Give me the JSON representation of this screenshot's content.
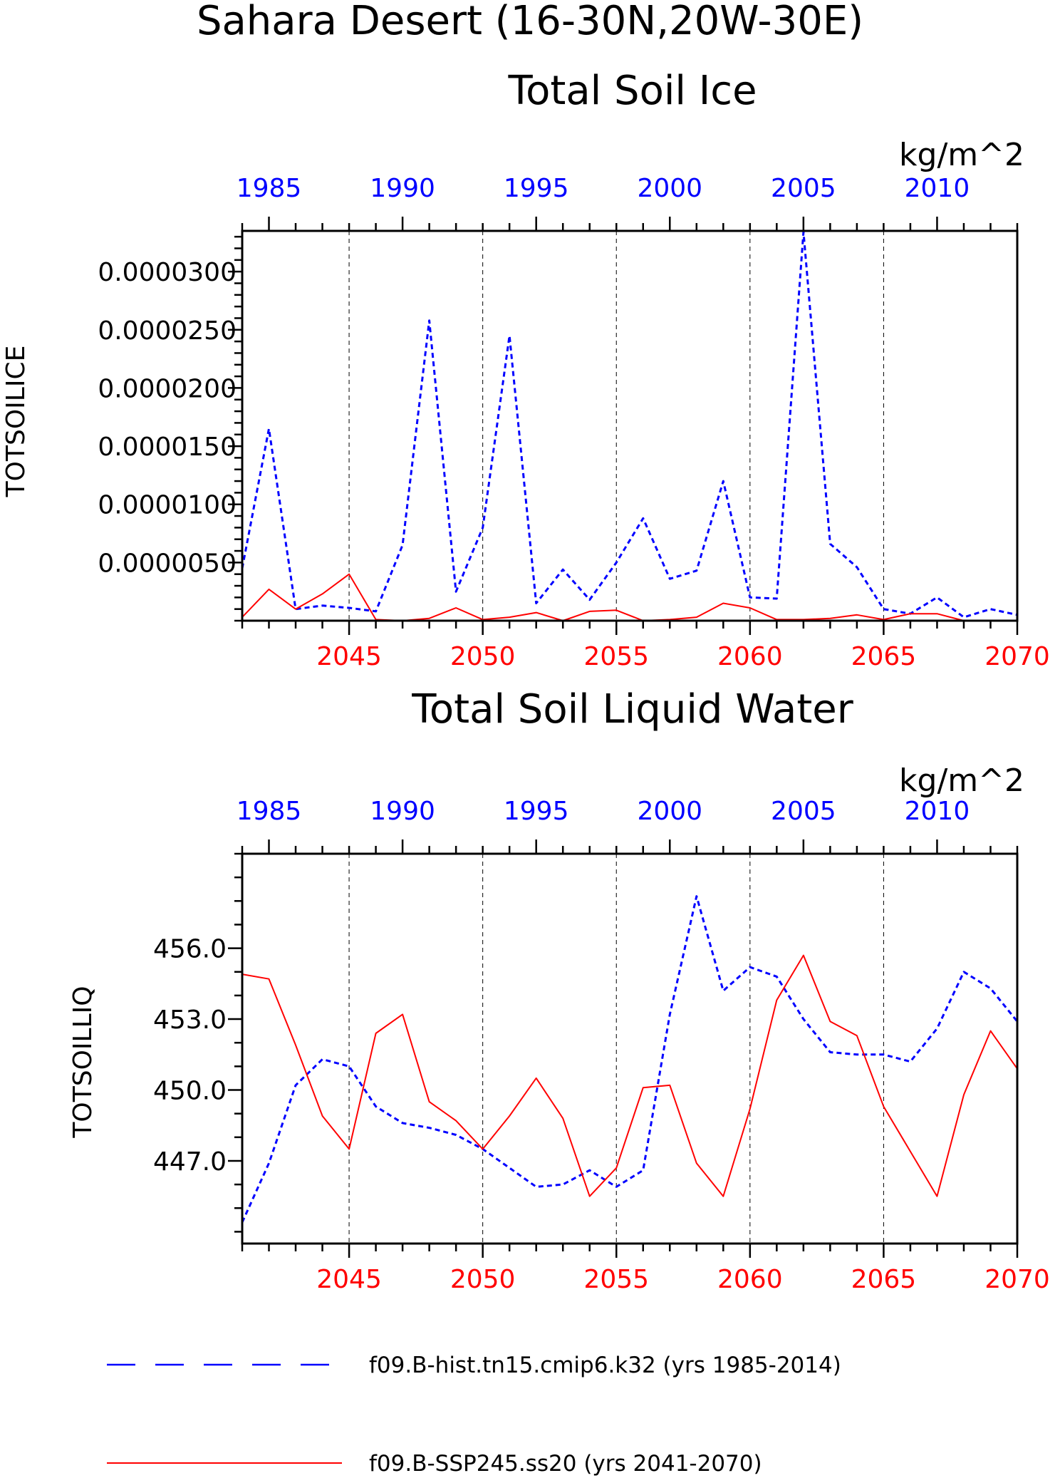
{
  "figure_title": "Sahara Desert (16-30N,20W-30E)",
  "legend": {
    "hist": "f09.B-hist.tn15.cmip6.k32 (yrs 1985-2014)",
    "ssp": "f09.B-SSP245.ss20 (yrs 2041-2070)"
  },
  "colors": {
    "hist": "#0000ff",
    "ssp": "#ff0000",
    "axis": "#000000",
    "grid": "#000000"
  },
  "chart_data": [
    {
      "type": "line",
      "title": "Total Soil Ice",
      "units": "kg/m^2",
      "ylabel": "TOTSOILICE",
      "ylim": [
        0,
        3.35e-05
      ],
      "yticks": [
        5e-06,
        1e-05,
        1.5e-05,
        2e-05,
        2.5e-05,
        3e-05
      ],
      "ytick_labels": [
        "0.0000050",
        "0.0000100",
        "0.0000150",
        "0.0000200",
        "0.0000250",
        "0.0000300"
      ],
      "yminor_step": 1e-06,
      "top_axis": {
        "xlim": [
          1984,
          2013
        ],
        "ticks": [
          1985,
          1990,
          1995,
          2000,
          2005,
          2010
        ],
        "labels": [
          "1985",
          "1990",
          "1995",
          "2000",
          "2005",
          "2010"
        ]
      },
      "bottom_axis": {
        "xlim": [
          2041,
          2070
        ],
        "ticks": [
          2045,
          2050,
          2055,
          2060,
          2065,
          2070
        ],
        "labels": [
          "2045",
          "2050",
          "2055",
          "2060",
          "2065",
          "2070"
        ]
      },
      "series": [
        {
          "id": "hist",
          "x": [
            1984,
            1985,
            1986,
            1987,
            1988,
            1989,
            1990,
            1991,
            1992,
            1993,
            1994,
            1995,
            1996,
            1997,
            1998,
            1999,
            2000,
            2001,
            2002,
            2003,
            2004,
            2005,
            2006,
            2007,
            2008,
            2009,
            2010,
            2011,
            2012,
            2013
          ],
          "values": [
            4.5e-06,
            1.65e-05,
            1e-06,
            1.3e-06,
            1.1e-06,
            8e-07,
            6.5e-06,
            2.58e-05,
            2.5e-06,
            8e-06,
            2.45e-05,
            1.5e-06,
            4.4e-06,
            1.8e-06,
            5e-06,
            8.8e-06,
            3.6e-06,
            4.3e-06,
            1.2e-05,
            2e-06,
            1.9e-06,
            3.34e-05,
            6.6e-06,
            4.6e-06,
            1e-06,
            6e-07,
            2e-06,
            3e-07,
            1e-06,
            5e-07
          ]
        },
        {
          "id": "ssp",
          "x": [
            2041,
            2042,
            2043,
            2044,
            2045,
            2046,
            2047,
            2048,
            2049,
            2050,
            2051,
            2052,
            2053,
            2054,
            2055,
            2056,
            2057,
            2058,
            2059,
            2060,
            2061,
            2062,
            2063,
            2064,
            2065,
            2066,
            2067,
            2068,
            2069,
            2070
          ],
          "values": [
            3e-07,
            2.7e-06,
            1e-06,
            2.3e-06,
            4e-06,
            1e-07,
            0.0,
            2e-07,
            1.1e-06,
            1e-07,
            3e-07,
            7e-07,
            0.0,
            8e-07,
            9e-07,
            0.0,
            1e-07,
            3e-07,
            1.5e-06,
            1.1e-06,
            1e-07,
            1e-07,
            2e-07,
            5e-07,
            1e-07,
            6e-07,
            6e-07,
            0.0,
            0.0,
            0.0
          ]
        }
      ]
    },
    {
      "type": "line",
      "title": "Total Soil Liquid Water",
      "units": "kg/m^2",
      "ylabel": "TOTSOILLIQ",
      "ylim": [
        443.5,
        460.0
      ],
      "yticks": [
        447,
        450,
        453,
        456
      ],
      "ytick_labels": [
        "447.0",
        "450.0",
        "453.0",
        "456.0"
      ],
      "yminor_step": 1,
      "top_axis": {
        "xlim": [
          1984,
          2013
        ],
        "ticks": [
          1985,
          1990,
          1995,
          2000,
          2005,
          2010
        ],
        "labels": [
          "1985",
          "1990",
          "1995",
          "2000",
          "2005",
          "2010"
        ]
      },
      "bottom_axis": {
        "xlim": [
          2041,
          2070
        ],
        "ticks": [
          2045,
          2050,
          2055,
          2060,
          2065,
          2070
        ],
        "labels": [
          "2045",
          "2050",
          "2055",
          "2060",
          "2065",
          "2070"
        ]
      },
      "series": [
        {
          "id": "hist",
          "x": [
            1984,
            1985,
            1986,
            1987,
            1988,
            1989,
            1990,
            1991,
            1992,
            1993,
            1994,
            1995,
            1996,
            1997,
            1998,
            1999,
            2000,
            2001,
            2002,
            2003,
            2004,
            2005,
            2006,
            2007,
            2008,
            2009,
            2010,
            2011,
            2012,
            2013
          ],
          "values": [
            444.4,
            446.9,
            450.2,
            451.3,
            451.0,
            449.3,
            448.6,
            448.4,
            448.1,
            447.5,
            446.7,
            445.9,
            446.0,
            446.6,
            445.9,
            446.6,
            453.2,
            458.2,
            454.2,
            455.2,
            454.8,
            453.0,
            451.6,
            451.5,
            451.5,
            451.2,
            452.6,
            455.0,
            454.3,
            452.9
          ]
        },
        {
          "id": "ssp",
          "x": [
            2041,
            2042,
            2043,
            2044,
            2045,
            2046,
            2047,
            2048,
            2049,
            2050,
            2051,
            2052,
            2053,
            2054,
            2055,
            2056,
            2057,
            2058,
            2059,
            2060,
            2061,
            2062,
            2063,
            2064,
            2065,
            2066,
            2067,
            2068,
            2069,
            2070
          ],
          "values": [
            454.9,
            454.7,
            451.9,
            448.9,
            447.5,
            452.4,
            453.2,
            449.5,
            448.7,
            447.5,
            448.9,
            450.5,
            448.8,
            445.5,
            446.7,
            450.1,
            450.2,
            446.9,
            445.5,
            449.2,
            453.8,
            455.7,
            452.9,
            452.3,
            449.3,
            447.4,
            445.5,
            449.8,
            452.5,
            450.9
          ]
        }
      ]
    }
  ]
}
